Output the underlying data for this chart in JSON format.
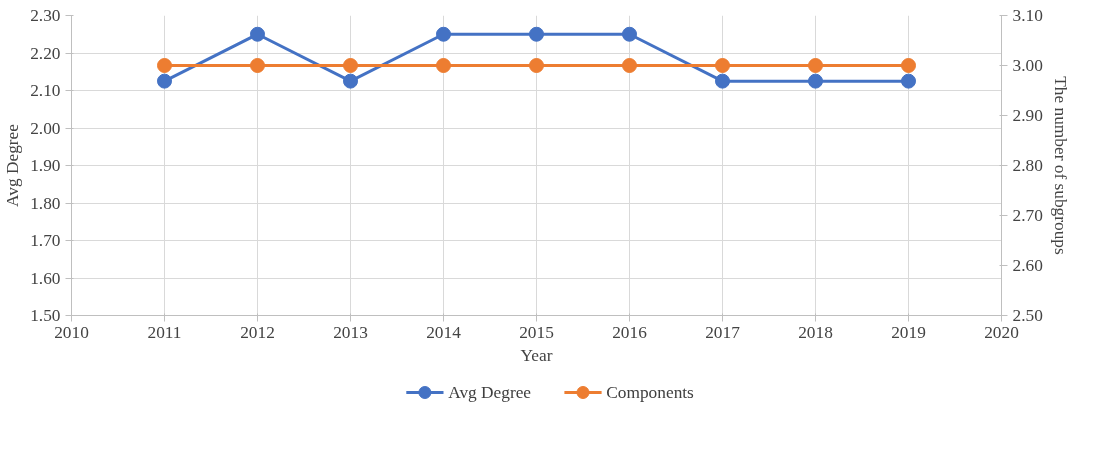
{
  "chart_data": {
    "type": "line",
    "xlabel": "Year",
    "ylabel": "Avg Degree",
    "y2label": "The number of subgroups",
    "x": [
      2011,
      2012,
      2013,
      2014,
      2015,
      2016,
      2017,
      2018,
      2019
    ],
    "series": [
      {
        "name": "Avg Degree",
        "color": "#4472c4",
        "values": [
          2.125,
          2.25,
          2.125,
          2.25,
          2.25,
          2.25,
          2.125,
          2.125,
          2.125
        ]
      },
      {
        "name": "Components",
        "color": "#ed7d31",
        "axis": "y2",
        "values": [
          3.0,
          3.0,
          3.0,
          3.0,
          3.0,
          3.0,
          3.0,
          3.0,
          3.0
        ]
      }
    ],
    "xlim": [
      2010,
      2020
    ],
    "xticks": [
      2010,
      2011,
      2012,
      2013,
      2014,
      2015,
      2016,
      2017,
      2018,
      2019,
      2020
    ],
    "ylim": [
      1.5,
      2.3
    ],
    "yticks": [
      {
        "value": 1.5,
        "label": "1.50"
      },
      {
        "value": 1.6,
        "label": "1.60"
      },
      {
        "value": 1.7,
        "label": "1.70"
      },
      {
        "value": 1.8,
        "label": "1.80"
      },
      {
        "value": 1.9,
        "label": "1.90"
      },
      {
        "value": 2.0,
        "label": "2.00"
      },
      {
        "value": 2.1,
        "label": "2.10"
      },
      {
        "value": 2.2,
        "label": "2.20"
      },
      {
        "value": 2.3,
        "label": "2.30"
      }
    ],
    "y2lim": [
      2.5,
      3.1
    ],
    "y2ticks": [
      {
        "value": 2.5,
        "label": "2.50"
      },
      {
        "value": 2.6,
        "label": "2.60"
      },
      {
        "value": 2.7,
        "label": "2.70"
      },
      {
        "value": 2.8,
        "label": "2.80"
      },
      {
        "value": 2.9,
        "label": "2.90"
      },
      {
        "value": 3.0,
        "label": "3.00"
      },
      {
        "value": 3.1,
        "label": "3.10"
      }
    ],
    "grid": true,
    "legend": "bottom",
    "marker": "circle",
    "line_style": "solid"
  }
}
